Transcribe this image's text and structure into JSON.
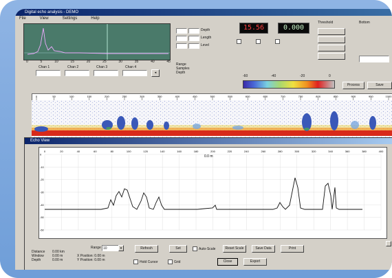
{
  "window": {
    "title": "Digital echo analysis - DEMO",
    "menu": [
      "File",
      "View",
      "Settings",
      "Help"
    ]
  },
  "controls": {
    "depth_label": "Depth",
    "length_label": "Length",
    "level_label": "Level",
    "filter_label": "Filter",
    "channel_labels": [
      "Chan 1",
      "Chan 2",
      "Chan 3",
      "Chan 4"
    ],
    "readout_red": "15.56",
    "readout_green": "0.000",
    "stats_lines": [
      "Range",
      "Samples",
      "Depth"
    ],
    "colorscale_ticks": [
      "-60",
      "-40",
      "-20",
      "0"
    ],
    "side_label_1": "Threshold",
    "side_label_2": "Bottom",
    "button_process": "Process",
    "button_save": "Save"
  },
  "echogram": {
    "ruler_ticks": [
      "0",
      "50",
      "100",
      "150",
      "200",
      "250",
      "300",
      "350",
      "400",
      "450",
      "500",
      "550",
      "600",
      "650",
      "700",
      "750",
      "800",
      "850",
      "900",
      "950",
      "1000"
    ]
  },
  "subwindow": {
    "title": "Echo View",
    "plot_label": "0.0 m",
    "y_ticks": [
      "0",
      "-10",
      "-20",
      "-30",
      "-40",
      "-50",
      "-60"
    ],
    "x_ticks": [
      "0",
      "20",
      "40",
      "60",
      "80",
      "100",
      "120",
      "140",
      "160",
      "180",
      "200",
      "220",
      "240",
      "260",
      "280",
      "300",
      "320",
      "340",
      "360",
      "380",
      "400"
    ],
    "info_labels": [
      "Distance",
      "Window",
      "Depth"
    ],
    "info_values": [
      "0.00 km",
      "0.00 m",
      "0.00 m"
    ],
    "position_lines": [
      "X Position:  0.00 m",
      "Y Position:  0.00 m"
    ],
    "range_label": "Range",
    "range_value": "10",
    "buttons": [
      "Refresh",
      "Set",
      "Auto-Scale",
      "Reset Scale",
      "Save Data",
      "Print"
    ],
    "checkbox_labels": [
      "Hold Cursor",
      "Grid",
      "Log Scale"
    ],
    "bottom_buttons": [
      "Close",
      "Export"
    ]
  },
  "colors": {
    "spectrum_bg": "#4a7a6a",
    "titlebar": "#0a246a",
    "readout_red": "#ff4040",
    "echo_bottom": "#d82a1a"
  }
}
